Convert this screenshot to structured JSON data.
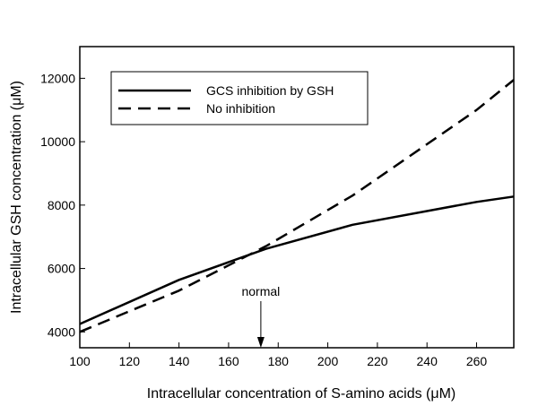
{
  "chart_data": {
    "type": "line",
    "title": "",
    "xlabel": "Intracellular concentration of S-amino acids (μM)",
    "ylabel": "Intracellular GSH concentration (μM)",
    "xlim": [
      100,
      275
    ],
    "ylim": [
      3500,
      13000
    ],
    "xticks": [
      100,
      120,
      140,
      160,
      180,
      200,
      220,
      240,
      260
    ],
    "yticks": [
      4000,
      6000,
      8000,
      10000,
      12000
    ],
    "grid": false,
    "legend_position": "top-left",
    "series": [
      {
        "name": "GCS inhibition by GSH",
        "style": "solid",
        "color": "#000000",
        "x": [
          100,
          140,
          175,
          210,
          260,
          275
        ],
        "y": [
          4250,
          5640,
          6620,
          7380,
          8100,
          8270
        ]
      },
      {
        "name": "No inhibition",
        "style": "dashed",
        "color": "#000000",
        "x": [
          100,
          140,
          175,
          210,
          260,
          275
        ],
        "y": [
          4000,
          5300,
          6700,
          8300,
          11000,
          11950
        ]
      }
    ],
    "annotations": [
      {
        "text": "normal",
        "x": 173,
        "type": "arrow-down-to-axis"
      }
    ]
  }
}
